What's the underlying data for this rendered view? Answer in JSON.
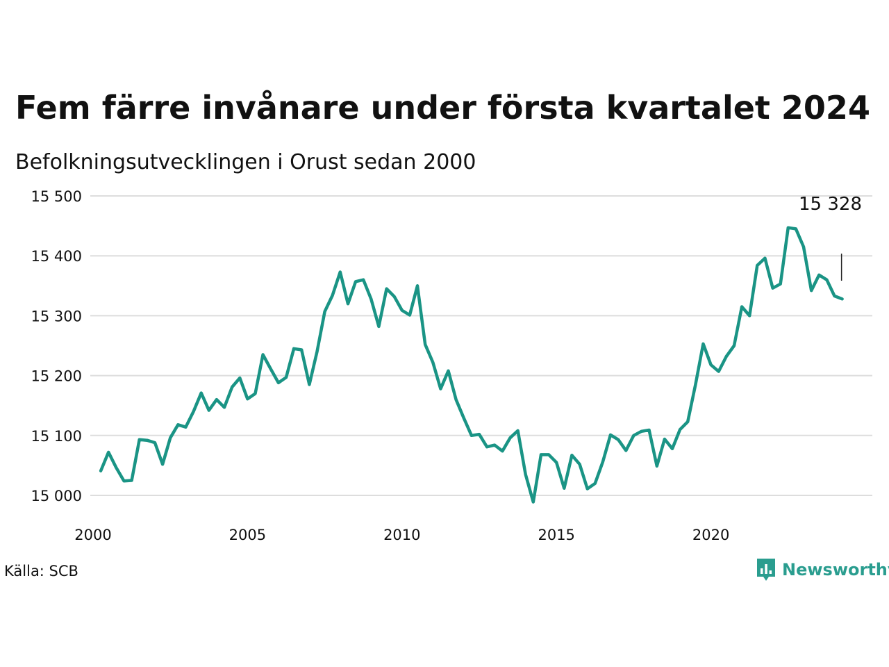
{
  "title": "Fem färre invånare under första kvartalet 2024",
  "subtitle": "Befolkningsutvecklingen i Orust sedan 2000",
  "source": "Källa: SCB",
  "brand": "Newsworthy",
  "colors": {
    "line": "#1a9485",
    "grid": "#dddddd",
    "text": "#111111",
    "brand": "#2a9d8f"
  },
  "chart_data": {
    "type": "line",
    "y_ticks": [
      15000,
      15100,
      15200,
      15300,
      15400,
      15500
    ],
    "y_tick_labels": [
      "15 000",
      "15 100",
      "15 200",
      "15 300",
      "15 400",
      "15 500"
    ],
    "x_ticks": [
      2000,
      2005,
      2010,
      2015,
      2020
    ],
    "x_tick_labels": [
      "2000",
      "2005",
      "2010",
      "2015",
      "2020"
    ],
    "xlim": [
      2000,
      2025
    ],
    "ylim": [
      14985,
      15500
    ],
    "grid": "horizontal",
    "annotation": {
      "text": "15 328",
      "value": 15328
    },
    "series": [
      {
        "x": [
          2000.25,
          2000.5,
          2000.75,
          2001.0,
          2001.25,
          2001.5,
          2001.75,
          2002.0,
          2002.25,
          2002.5,
          2002.75,
          2003.0,
          2003.25,
          2003.5,
          2003.75,
          2004.0,
          2004.25,
          2004.5,
          2004.75,
          2005.0,
          2005.25,
          2005.5,
          2005.75,
          2006.0,
          2006.25,
          2006.5,
          2006.75,
          2007.0,
          2007.25,
          2007.5,
          2007.75,
          2008.0,
          2008.25,
          2008.5,
          2008.75,
          2009.0,
          2009.25,
          2009.5,
          2009.75,
          2010.0,
          2010.25,
          2010.5,
          2010.75,
          2011.0,
          2011.25,
          2011.5,
          2011.75,
          2012.0,
          2012.25,
          2012.5,
          2012.75,
          2013.0,
          2013.25,
          2013.5,
          2013.75,
          2014.0,
          2014.25,
          2014.5,
          2014.75,
          2015.0,
          2015.25,
          2015.5,
          2015.75,
          2016.0,
          2016.25,
          2016.5,
          2016.75,
          2017.0,
          2017.25,
          2017.5,
          2017.75,
          2018.0,
          2018.25,
          2018.5,
          2018.75,
          2019.0,
          2019.25,
          2019.5,
          2019.75,
          2020.0,
          2020.25,
          2020.5,
          2020.75,
          2021.0,
          2021.25,
          2021.5,
          2021.75,
          2022.0,
          2022.25,
          2022.5,
          2022.75,
          2023.0,
          2023.25,
          2023.5,
          2023.75,
          2024.0,
          2024.25
        ],
        "values": [
          15041,
          15072,
          15046,
          15024,
          15025,
          15093,
          15092,
          15088,
          15052,
          15096,
          15118,
          15114,
          15140,
          15171,
          15142,
          15160,
          15147,
          15181,
          15196,
          15161,
          15170,
          15235,
          15211,
          15188,
          15197,
          15245,
          15243,
          15185,
          15240,
          15307,
          15334,
          15373,
          15320,
          15357,
          15360,
          15328,
          15282,
          15345,
          15332,
          15309,
          15301,
          15350,
          15252,
          15222,
          15178,
          15208,
          15160,
          15129,
          15100,
          15102,
          15081,
          15084,
          15074,
          15096,
          15108,
          15035,
          14989,
          15068,
          15068,
          15055,
          15012,
          15067,
          15052,
          15011,
          15020,
          15056,
          15101,
          15093,
          15075,
          15100,
          15107,
          15109,
          15049,
          15094,
          15078,
          15110,
          15123,
          15185,
          15253,
          15218,
          15207,
          15232,
          15250,
          15315,
          15300,
          15384,
          15396,
          15346,
          15353,
          15447,
          15445,
          15415,
          15342,
          15368,
          15360,
          15333,
          15328
        ]
      }
    ]
  }
}
